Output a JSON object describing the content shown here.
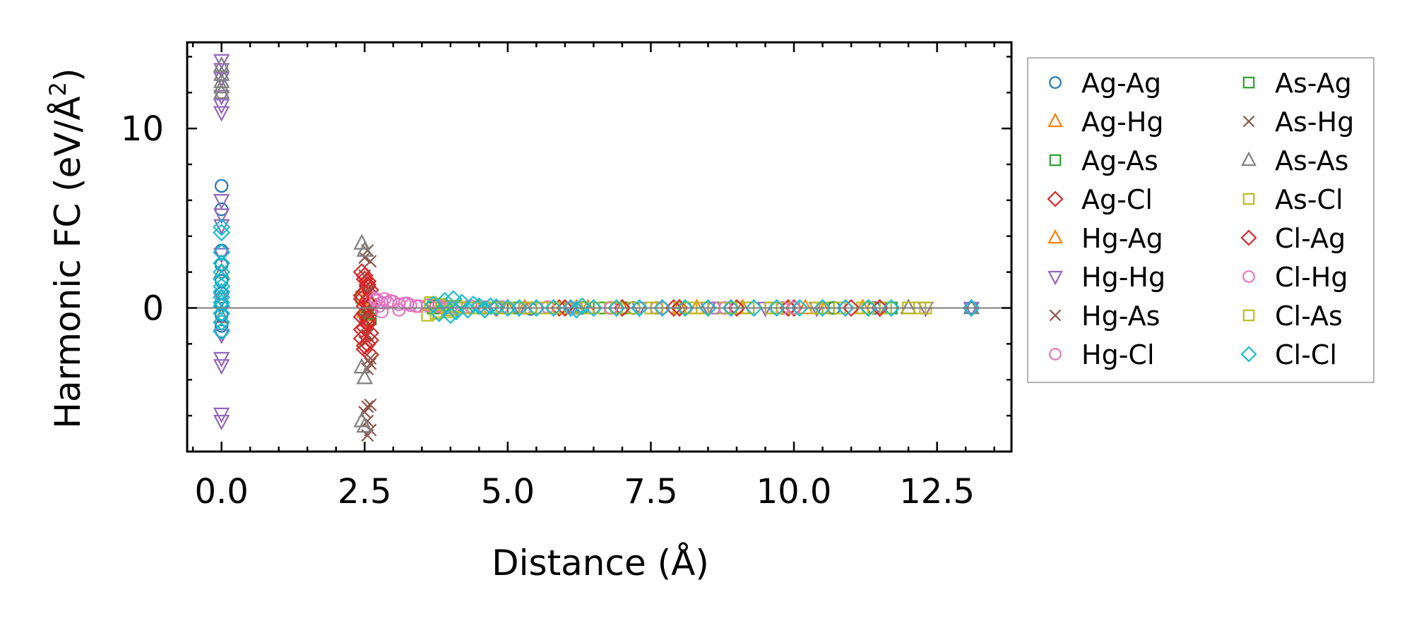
{
  "chart_data": {
    "type": "scatter",
    "title": "",
    "xlabel": "Distance (Å)",
    "ylabel": "Harmonic FC (eV/Å²)",
    "ylabel_base": "Harmonic FC (eV/Å",
    "ylabel_sup": "2",
    "ylabel_close": ")",
    "xlim": [
      -0.6,
      13.8
    ],
    "ylim": [
      -8.0,
      14.8
    ],
    "xticks": [
      0.0,
      2.5,
      5.0,
      7.5,
      10.0,
      12.5
    ],
    "xtick_labels": [
      "0.0",
      "2.5",
      "5.0",
      "7.5",
      "10.0",
      "12.5"
    ],
    "yticks": [
      0,
      10
    ],
    "ytick_labels": [
      "0",
      "10"
    ],
    "x_minor_step": 0.5,
    "y_minor_step": 2,
    "zero_line": true,
    "legend_position": "outside-right",
    "series": [
      {
        "name": "Ag-Ag",
        "color": "#1f77b4",
        "marker": "circle",
        "x": [
          0,
          0,
          0,
          0,
          0,
          0,
          0,
          0,
          0,
          0,
          3.9,
          4.6,
          5.4,
          6.3,
          7.2,
          8.1,
          9.0,
          9.9,
          10.7,
          11.4,
          13.1
        ],
        "y": [
          6.8,
          5.5,
          3.2,
          2.4,
          1.5,
          0.8,
          0.2,
          -0.4,
          -1.0,
          -1.3,
          0.05,
          0,
          -0.05,
          0,
          0,
          0,
          0,
          0,
          0,
          0,
          0
        ]
      },
      {
        "name": "Ag-Hg",
        "color": "#ff7f0e",
        "marker": "triangle-up",
        "x": [
          2.5,
          2.55,
          3.7,
          4.5,
          5.3,
          6.2,
          7.0,
          8.0,
          9.1,
          10.2,
          11.2,
          12.0
        ],
        "y": [
          0.5,
          -0.4,
          0.1,
          0,
          0,
          0,
          0,
          0,
          0,
          0,
          0,
          0
        ]
      },
      {
        "name": "Ag-As",
        "color": "#2ca02c",
        "marker": "square",
        "x": [
          2.45,
          2.6,
          3.8,
          4.7,
          5.6,
          6.6,
          7.6,
          8.6,
          9.6,
          10.6,
          11.6
        ],
        "y": [
          0.6,
          -0.6,
          0.1,
          0,
          0,
          0,
          0,
          0,
          0,
          0,
          0
        ]
      },
      {
        "name": "Ag-Cl",
        "color": "#d62728",
        "marker": "diamond",
        "x": [
          2.45,
          2.5,
          2.55,
          2.6,
          2.45,
          2.55,
          2.5,
          2.6,
          2.45,
          2.55,
          2.5,
          2.6,
          2.45,
          2.55,
          2.5,
          2.6,
          2.5,
          2.55,
          4.8,
          5.9,
          6.9,
          7.9,
          8.9,
          9.9,
          10.9,
          11.3
        ],
        "y": [
          2.0,
          1.6,
          1.3,
          1.0,
          0.7,
          0.4,
          0.1,
          -0.2,
          -0.5,
          -0.8,
          -1.1,
          -1.4,
          -1.7,
          -2.0,
          -2.3,
          -2.6,
          0.9,
          -0.9,
          0,
          0,
          0,
          0,
          0,
          0,
          0,
          0
        ]
      },
      {
        "name": "Hg-Ag",
        "color": "#ff7f0e",
        "marker": "triangle-up",
        "x": [
          2.5,
          2.6,
          3.9,
          5.0,
          6.4,
          8.3,
          10.5
        ],
        "y": [
          -0.2,
          0.3,
          0,
          0,
          0,
          0,
          0
        ]
      },
      {
        "name": "Hg-Hg",
        "color": "#9467bd",
        "marker": "triangle-down",
        "x": [
          0,
          0,
          0,
          0,
          0,
          0,
          0,
          0,
          0,
          0,
          0,
          0,
          0,
          0,
          0,
          0,
          4.1,
          5.2,
          6.1,
          7.3,
          8.5,
          9.5,
          10.4,
          11.5,
          12.3,
          13.1
        ],
        "y": [
          13.8,
          13.3,
          12.8,
          11.8,
          11.3,
          10.9,
          6.0,
          5.2,
          4.6,
          3.0,
          0.5,
          -1.5,
          -2.8,
          -3.2,
          -5.9,
          -6.3,
          0,
          0,
          0,
          0,
          0,
          0,
          0,
          0,
          0,
          0
        ]
      },
      {
        "name": "Hg-As",
        "color": "#8c564b",
        "marker": "x",
        "x": [
          2.55,
          2.6,
          2.5,
          2.55,
          2.6,
          2.5,
          2.55,
          2.6,
          2.55,
          2.6,
          2.5,
          2.55,
          2.6,
          2.55
        ],
        "y": [
          3.2,
          2.6,
          1.8,
          0.9,
          0.2,
          -0.6,
          -1.5,
          -2.8,
          -3.4,
          -5.4,
          -5.8,
          -6.3,
          -6.8,
          -7.1
        ]
      },
      {
        "name": "Hg-Cl",
        "color": "#e377c2",
        "marker": "circle",
        "x": [
          2.6,
          2.65,
          2.7,
          2.75,
          2.8,
          2.85,
          2.9,
          3.0,
          3.1,
          3.2,
          3.3,
          3.45,
          3.6,
          3.75,
          3.9,
          4.1,
          4.35,
          4.6,
          4.9,
          5.3,
          5.7,
          6.2,
          6.8,
          7.6,
          8.6,
          9.8
        ],
        "y": [
          0.2,
          0.6,
          0.4,
          0.1,
          -0.2,
          0.5,
          0.3,
          0.35,
          -0.1,
          0.25,
          0.15,
          0.1,
          0.15,
          0.2,
          0.1,
          0.05,
          0.1,
          0.05,
          0.05,
          0,
          0.05,
          0,
          0,
          0,
          0,
          0
        ]
      },
      {
        "name": "As-Ag",
        "color": "#2ca02c",
        "marker": "square",
        "x": [
          2.55,
          3.7,
          5.1,
          7.0,
          9.2,
          11.7
        ],
        "y": [
          -0.3,
          0,
          0,
          0,
          0,
          0
        ]
      },
      {
        "name": "As-Hg",
        "color": "#8c564b",
        "marker": "x",
        "x": [
          2.5,
          2.6,
          2.55,
          2.5,
          2.6,
          2.55
        ],
        "y": [
          2.8,
          1.2,
          -0.3,
          -1.9,
          -3.1,
          -5.5
        ]
      },
      {
        "name": "As-As",
        "color": "#7f7f7f",
        "marker": "triangle-up",
        "x": [
          0,
          0,
          0,
          0,
          0,
          0,
          0,
          0,
          2.45,
          2.5,
          2.45,
          2.5,
          2.45,
          2.5,
          12.0,
          13.1
        ],
        "y": [
          13.5,
          13.0,
          12.6,
          12.3,
          12.0,
          2.0,
          0.6,
          -0.5,
          3.6,
          3.2,
          -3.3,
          -3.9,
          -6.3,
          -6.6,
          0,
          0
        ]
      },
      {
        "name": "As-Cl",
        "color": "#bcbd22",
        "marker": "square",
        "x": [
          3.6,
          3.7,
          3.8,
          3.9,
          4.0,
          4.2,
          4.4,
          4.6,
          4.8,
          5.0,
          5.3,
          5.6,
          5.9,
          6.2,
          6.5,
          6.8,
          7.2,
          7.6,
          8.0,
          8.4,
          8.8,
          9.2,
          9.6,
          10.0,
          10.4,
          10.8,
          11.2,
          11.6,
          12.0,
          12.3
        ],
        "y": [
          -0.4,
          0.2,
          -0.2,
          0.1,
          -0.1,
          0,
          0,
          0,
          0,
          0,
          0,
          0,
          0,
          0,
          0,
          0,
          0,
          0,
          0,
          0,
          0,
          0,
          0,
          0,
          0,
          0,
          0,
          0,
          0,
          0
        ]
      },
      {
        "name": "Cl-Ag",
        "color": "#d62728",
        "marker": "diamond",
        "x": [
          2.5,
          2.55,
          2.45,
          2.6,
          2.5,
          2.55,
          2.45,
          2.6,
          2.5,
          2.55,
          6.0,
          7.0,
          8.0,
          9.0,
          10.0,
          11.0,
          11.5
        ],
        "y": [
          1.8,
          1.2,
          0.5,
          0.2,
          -0.3,
          -0.6,
          -1.2,
          -1.8,
          -2.1,
          1.5,
          0,
          0,
          0,
          0,
          0,
          0,
          0
        ]
      },
      {
        "name": "Cl-Hg",
        "color": "#e377c2",
        "marker": "circle",
        "x": [
          2.7,
          2.8,
          2.95,
          3.1,
          3.25,
          3.4,
          3.6,
          3.8,
          4.0,
          4.3,
          4.6,
          5.0,
          5.5,
          6.1,
          6.8,
          7.7,
          8.8,
          10.0
        ],
        "y": [
          0.5,
          0.3,
          0.4,
          0.2,
          0.25,
          0.1,
          0.15,
          0.1,
          0.05,
          0.05,
          0,
          0,
          0,
          0,
          0,
          0,
          0,
          0
        ]
      },
      {
        "name": "Cl-As",
        "color": "#bcbd22",
        "marker": "square",
        "x": [
          3.65,
          3.75,
          3.85,
          3.95,
          4.1,
          4.3,
          4.5,
          4.7,
          5.0,
          5.4,
          5.8,
          6.3,
          6.9,
          7.5,
          8.2,
          8.9,
          9.7,
          10.5,
          11.3,
          12.2
        ],
        "y": [
          0.3,
          -0.3,
          0.2,
          -0.2,
          0.1,
          0,
          0,
          0,
          0,
          0,
          0,
          0,
          0,
          0,
          0,
          0,
          0,
          0,
          0,
          0
        ]
      },
      {
        "name": "Cl-Cl",
        "color": "#17becf",
        "marker": "diamond",
        "x": [
          0,
          0,
          0,
          0,
          0,
          0,
          0,
          0,
          0,
          0,
          0,
          0,
          0,
          0,
          3.7,
          3.8,
          3.9,
          4.0,
          4.05,
          4.1,
          4.2,
          4.3,
          4.4,
          4.5,
          4.6,
          4.7,
          4.8,
          5.0,
          5.2,
          5.5,
          5.8,
          6.1,
          6.2,
          6.3,
          6.5,
          6.9,
          7.3,
          7.7,
          8.1,
          8.5,
          8.9,
          9.3,
          9.7,
          10.1,
          10.5,
          10.9,
          11.3,
          11.7,
          13.1
        ],
        "y": [
          4.5,
          4.2,
          3.1,
          2.5,
          2.0,
          1.6,
          1.2,
          0.9,
          0.6,
          0.3,
          0.1,
          -0.3,
          -0.8,
          -1.3,
          0.2,
          -0.3,
          0.4,
          -0.4,
          0.5,
          -0.2,
          0.3,
          -0.1,
          0.2,
          0.1,
          -0.1,
          0.1,
          0.05,
          0,
          0,
          0,
          0,
          0,
          -0.1,
          0.1,
          0,
          0,
          0,
          0,
          0,
          0,
          0,
          0,
          0,
          0,
          0,
          0,
          0,
          0,
          0
        ]
      }
    ]
  }
}
